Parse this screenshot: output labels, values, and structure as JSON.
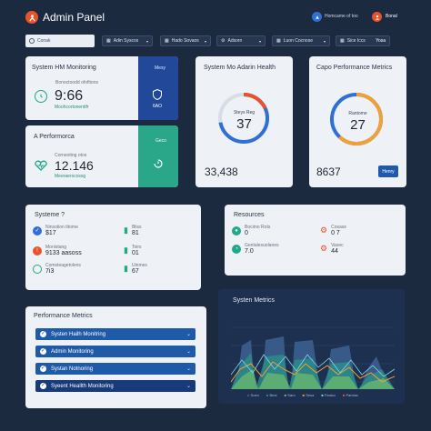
{
  "header": {
    "app_title": "Admin Panel",
    "user_label": "Homcame of too",
    "user_name": "Bonal",
    "colors": {
      "accent_orange": "#e8532b",
      "accent_blue": "#2f6fd6"
    }
  },
  "search": {
    "value": "Conak"
  },
  "nav": {
    "items": [
      {
        "label": "Adin Syscos",
        "icon": "grid-icon"
      },
      {
        "label": "Hado Sovaos",
        "icon": "grid-icon"
      },
      {
        "label": "Adsorn",
        "icon": "settings-icon"
      },
      {
        "label": "Luon Cocnose",
        "icon": "grid-icon"
      },
      {
        "label": "Sice Iccs",
        "icon": "grid-icon"
      }
    ],
    "badge": "Yosa"
  },
  "system_monitoring": {
    "title": "System HM Monitoring",
    "sub_label": "Bonoctoodd ofoftions",
    "value": "9:66",
    "detail": "Moohcortonentifr",
    "side_badge": "Mesy",
    "side_value": "6AO"
  },
  "system_health": {
    "title": "System Mo Adarin Health",
    "ring_label": "Steys Reg",
    "ring_value": "37",
    "footer_value": "33,438",
    "ring_percent": 72
  },
  "capo_performance": {
    "title": "Capo Performance Metrics",
    "ring_label": "Rantome",
    "ring_value": "27",
    "footer_value": "8637",
    "button": "Henry",
    "ring_percent": 62
  },
  "a_performance": {
    "title": "A Performorca",
    "sub_label": "Corneoting otos",
    "value": "12.146",
    "detail": "Meeraerscossg",
    "side_badge": "Geco"
  },
  "systems": {
    "title": "Systeme ?",
    "rows": [
      {
        "label": "Ninsotion ittome",
        "value": "$17",
        "icon": "check-icon"
      },
      {
        "label": "Monistang",
        "value": "9133 aasoss",
        "icon": "warning-icon"
      },
      {
        "label": "Comsteagetolens",
        "value": "7i3",
        "icon": "dial-icon"
      }
    ],
    "rows_right": [
      {
        "label": "Bliss",
        "value": "81",
        "icon": "bar-chart-icon"
      },
      {
        "label": "Toirs",
        "value": "01",
        "icon": "bar-chart-icon"
      },
      {
        "label": "Uinmes",
        "value": "67",
        "icon": "bar-chart-icon"
      }
    ]
  },
  "resources": {
    "title": "Resources",
    "rows": [
      {
        "label": "Bocimo Rots",
        "value": "0",
        "icon": "shield-icon"
      },
      {
        "label": "Gentalesuolanes",
        "value": "7.0",
        "icon": "gauge-icon"
      }
    ],
    "rows_right": [
      {
        "label": "Cosase",
        "value": "0 7",
        "icon": "gear-icon"
      },
      {
        "label": "Vasec",
        "value": "44",
        "icon": "gear-icon"
      }
    ]
  },
  "performance_list": {
    "title": "Performance Metrics",
    "items": [
      {
        "label": "Systen Hailh Monitring"
      },
      {
        "label": "Admin Monitoring"
      },
      {
        "label": "Systan Notnoring"
      },
      {
        "label": "Syeent Heallth Monitoring"
      }
    ]
  },
  "system_metrics": {
    "title": "Systen Metrics",
    "legend": [
      "Suen",
      "Bme",
      "Saro",
      "Sesa",
      "Fealco",
      "Pamlax"
    ]
  }
}
